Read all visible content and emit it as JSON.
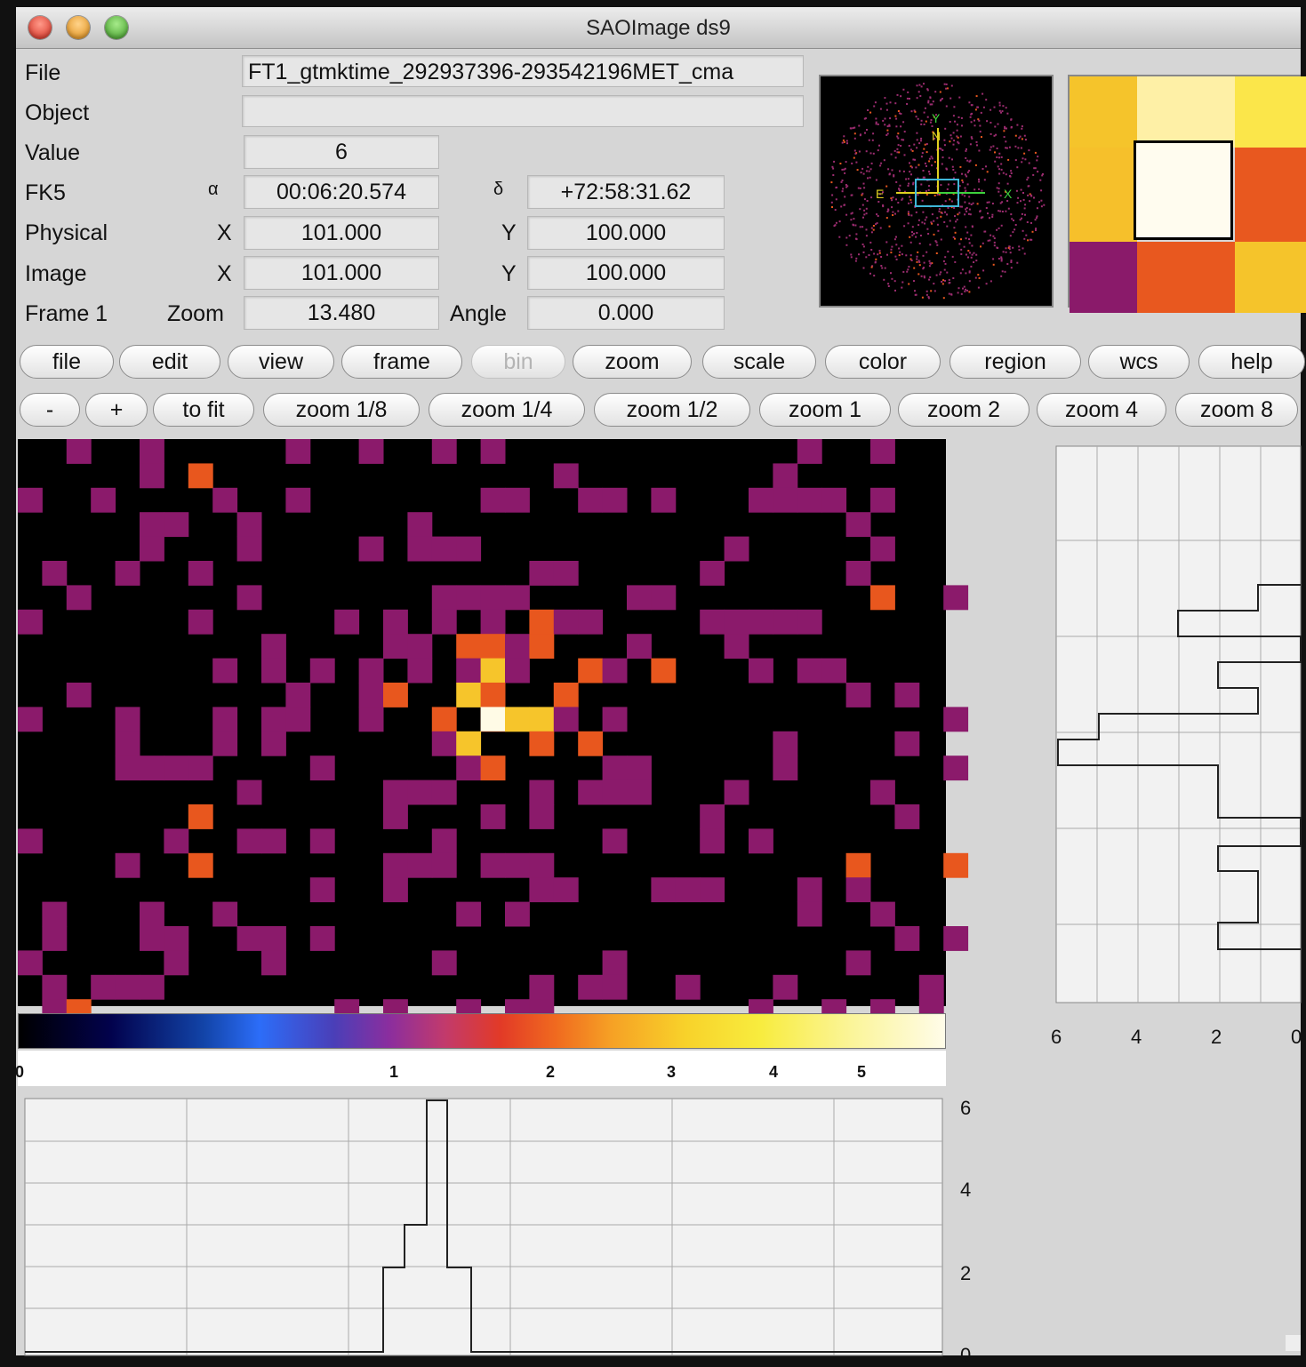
{
  "window": {
    "title": "SAOImage ds9"
  },
  "info": {
    "file_label": "File",
    "file_value": "FT1_gtmktime_292937396-293542196MET_cma",
    "object_label": "Object",
    "object_value": "",
    "value_label": "Value",
    "value_value": "6",
    "fk5_label": "FK5",
    "alpha_symbol": "α",
    "alpha_value": "00:06:20.574",
    "delta_symbol": "δ",
    "delta_value": "+72:58:31.62",
    "physical_label": "Physical",
    "physical_x_label": "X",
    "physical_x": "101.000",
    "physical_y_label": "Y",
    "physical_y": "100.000",
    "image_label": "Image",
    "image_x_label": "X",
    "image_x": "101.000",
    "image_y_label": "Y",
    "image_y": "100.000",
    "frame_label": "Frame 1",
    "zoom_label": "Zoom",
    "zoom_value": "13.480",
    "angle_label": "Angle",
    "angle_value": "0.000"
  },
  "panner": {
    "labels": {
      "y": "Y",
      "n": "N",
      "e": "E",
      "x": "X"
    }
  },
  "menu_buttons": [
    "file",
    "edit",
    "view",
    "frame",
    "bin",
    "zoom",
    "scale",
    "color",
    "region",
    "wcs",
    "help"
  ],
  "zoom_buttons": [
    "-",
    "+",
    "to fit",
    "zoom 1/8",
    "zoom 1/4",
    "zoom 1/2",
    "zoom 1",
    "zoom 2",
    "zoom 4",
    "zoom 8"
  ],
  "colorbar": {
    "ticks": [
      "0",
      "1",
      "2",
      "3",
      "4",
      "5"
    ]
  },
  "vertical_graph": {
    "ticks": [
      "6",
      "4",
      "2",
      "0"
    ]
  },
  "horizontal_graph": {
    "ticks": [
      "6",
      "4",
      "2",
      "0"
    ]
  },
  "colors": {
    "low": "#8b1a6b",
    "mid": "#e8571e",
    "high": "#f6c52b",
    "peak": "#fffbe6"
  }
}
